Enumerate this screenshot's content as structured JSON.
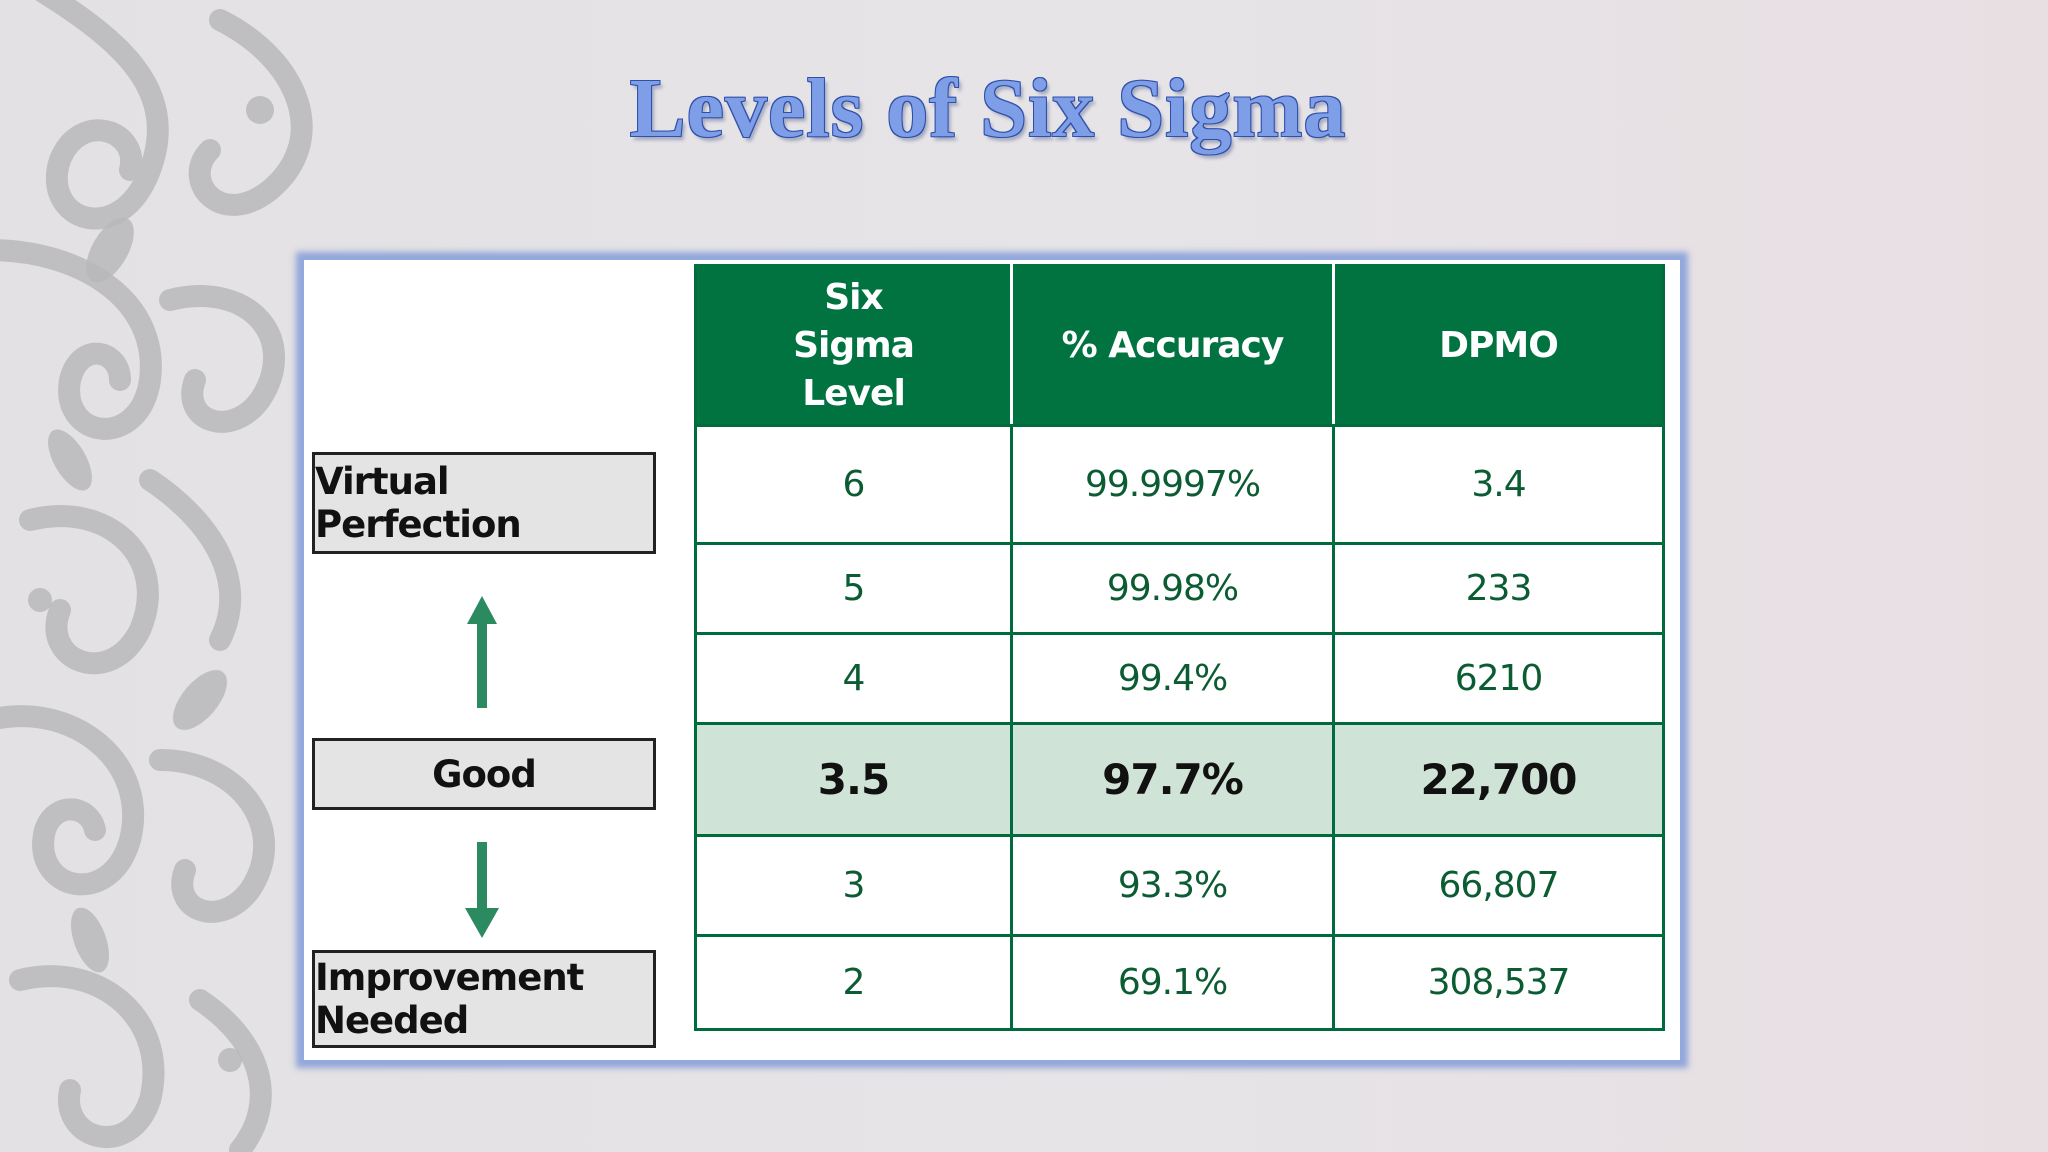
{
  "slide": {
    "title": "Levels of Six Sigma"
  },
  "labels": {
    "top": "Virtual Perfection",
    "middle": "Good",
    "bottom": "Improvement Needed"
  },
  "table": {
    "headers": [
      "Six Sigma Level",
      "% Accuracy",
      "DPMO"
    ],
    "rows": [
      {
        "level": "6",
        "accuracy": "99.9997%",
        "dpmo": "3.4"
      },
      {
        "level": "5",
        "accuracy": "99.98%",
        "dpmo": "233"
      },
      {
        "level": "4",
        "accuracy": "99.4%",
        "dpmo": "6210"
      },
      {
        "level": "3.5",
        "accuracy": "97.7%",
        "dpmo": "22,700"
      },
      {
        "level": "3",
        "accuracy": "93.3%",
        "dpmo": "66,807"
      },
      {
        "level": "2",
        "accuracy": "69.1%",
        "dpmo": "308,537"
      }
    ],
    "highlight_row": 3
  },
  "colors": {
    "header_green": "#007340",
    "border_green": "#006b3c",
    "highlight_row": "#cfe3d6",
    "arrow_green": "#2b8a5f",
    "title_blue": "#7e9ee8"
  },
  "icons": [
    "up-arrow-icon",
    "down-arrow-icon",
    "swirl-ornament"
  ]
}
